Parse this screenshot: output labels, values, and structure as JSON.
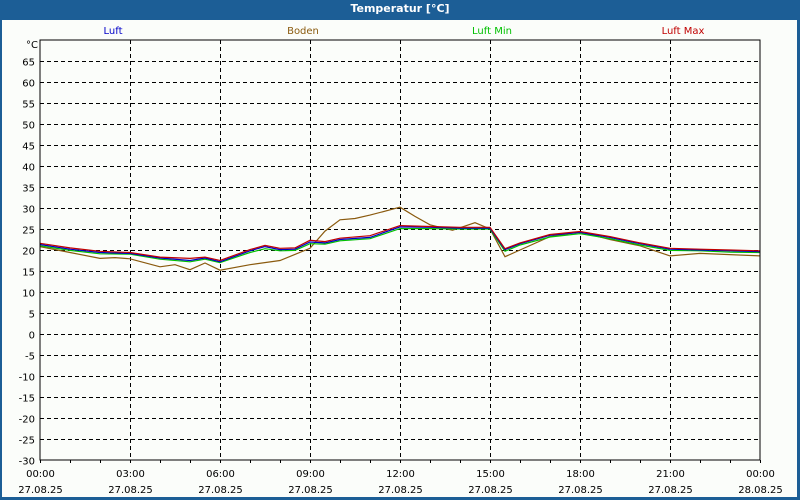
{
  "window": {
    "title": "Temperatur [°C]"
  },
  "colors": {
    "titlebar": "#1c5e96",
    "background": "#fbfdfa",
    "luft": "#0000c8",
    "boden": "#8a5a0e",
    "luft_min": "#00c000",
    "luft_max": "#c00000"
  },
  "chart_data": {
    "type": "line",
    "title": "Temperatur [°C]",
    "ylabel": "°C",
    "xlabel": "",
    "ylim": [
      -30,
      70
    ],
    "yticks": [
      65,
      60,
      55,
      50,
      45,
      40,
      35,
      30,
      25,
      20,
      15,
      10,
      5,
      0,
      -5,
      -10,
      -15,
      -20,
      -25,
      -30
    ],
    "xticks": [
      {
        "time": "00:00",
        "date": "27.08.25"
      },
      {
        "time": "03:00",
        "date": "27.08.25"
      },
      {
        "time": "06:00",
        "date": "27.08.25"
      },
      {
        "time": "09:00",
        "date": "27.08.25"
      },
      {
        "time": "12:00",
        "date": "27.08.25"
      },
      {
        "time": "15:00",
        "date": "27.08.25"
      },
      {
        "time": "18:00",
        "date": "27.08.25"
      },
      {
        "time": "21:00",
        "date": "27.08.25"
      },
      {
        "time": "00:00",
        "date": "28.08.25"
      }
    ],
    "grid": true,
    "legend_position": "top",
    "series": [
      {
        "name": "Luft",
        "color": "#0000c8",
        "x": [
          0,
          1,
          2,
          3,
          4,
          5,
          5.5,
          6,
          7,
          7.5,
          8,
          8.5,
          9,
          9.5,
          10,
          11,
          12,
          13,
          14,
          15,
          15.5,
          16,
          17,
          18,
          19,
          20,
          21,
          22,
          23,
          24
        ],
        "y": [
          21.3,
          20.2,
          19.4,
          19.2,
          18.1,
          17.5,
          18.1,
          17.2,
          19.8,
          20.8,
          20.1,
          20.2,
          21.9,
          21.7,
          22.5,
          23,
          25.5,
          25.4,
          25.2,
          25.2,
          20.1,
          21.5,
          23.5,
          24.2,
          23,
          21.5,
          20.2,
          20,
          19.8,
          19.6
        ]
      },
      {
        "name": "Boden",
        "color": "#8a5a0e",
        "x": [
          0,
          1,
          2,
          2.5,
          3,
          4,
          4.5,
          5,
          5.5,
          6,
          7,
          8,
          9,
          9.5,
          10,
          10.5,
          11,
          12,
          12.5,
          13,
          13.75,
          14.5,
          15,
          15.5,
          16,
          17,
          18,
          19,
          20,
          21,
          22,
          24
        ],
        "y": [
          20.8,
          19.4,
          18,
          18.2,
          17.9,
          16,
          16.5,
          15.3,
          16.9,
          15.2,
          16.5,
          17.5,
          20.4,
          24.5,
          27.2,
          27.5,
          28.3,
          30.2,
          28,
          26,
          24.7,
          26.5,
          25,
          18.4,
          20,
          23.2,
          24.3,
          22.5,
          21,
          18.6,
          19.2,
          18.6
        ]
      },
      {
        "name": "Luft Min",
        "color": "#00c000",
        "x": [
          0,
          1,
          2,
          3,
          4,
          5,
          5.5,
          6,
          7,
          7.5,
          8,
          8.5,
          9,
          9.5,
          10,
          11,
          12,
          13,
          14,
          15,
          15.5,
          16,
          17,
          18,
          19,
          20,
          21,
          22,
          23,
          24
        ],
        "y": [
          21,
          19.9,
          19.1,
          19,
          17.8,
          17.2,
          17.8,
          17,
          19.4,
          20.3,
          19.8,
          19.9,
          21.5,
          21.4,
          22.2,
          22.7,
          25.1,
          25.1,
          25,
          25,
          19.7,
          21.2,
          23.1,
          23.9,
          22.7,
          21.2,
          19.9,
          19.8,
          19.5,
          19.4
        ]
      },
      {
        "name": "Luft Max",
        "color": "#c00000",
        "x": [
          0,
          1,
          2,
          3,
          4,
          5,
          5.5,
          6,
          7,
          7.5,
          8,
          8.5,
          9,
          9.5,
          10,
          11,
          12,
          13,
          14,
          15,
          15.5,
          16,
          17,
          18,
          19,
          20,
          21,
          22,
          23,
          24
        ],
        "y": [
          21.6,
          20.5,
          19.7,
          19.4,
          18.3,
          18,
          18.3,
          17.5,
          20.1,
          21.1,
          20.4,
          20.5,
          22.3,
          22,
          22.8,
          23.4,
          25.8,
          25.6,
          25.4,
          25.4,
          20.3,
          21.7,
          23.7,
          24.4,
          23.2,
          21.7,
          20.4,
          20.2,
          20,
          19.8
        ]
      }
    ]
  }
}
